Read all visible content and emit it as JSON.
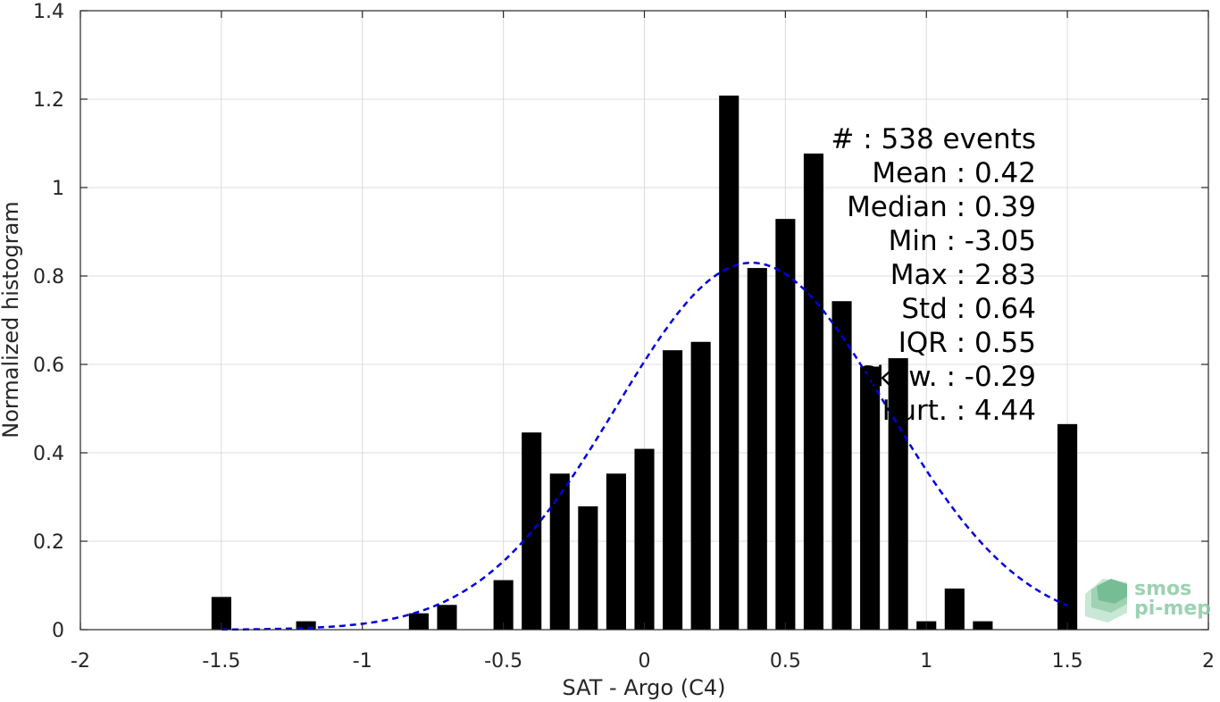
{
  "chart_data": {
    "type": "bar",
    "xlabel": "SAT - Argo (C4)",
    "ylabel": "Normalized histogram",
    "xlim": [
      -2,
      2
    ],
    "ylim": [
      0,
      1.4
    ],
    "grid": true,
    "xticks": [
      -2,
      -1.5,
      -1,
      -0.5,
      0,
      0.5,
      1,
      1.5,
      2
    ],
    "xtick_labels": [
      "-2",
      "-1.5",
      "-1",
      "-0.5",
      "0",
      "0.5",
      "1",
      "1.5",
      "2"
    ],
    "yticks": [
      0,
      0.2,
      0.4,
      0.6,
      0.8,
      1,
      1.2,
      1.4
    ],
    "ytick_labels": [
      "0",
      "0.2",
      "0.4",
      "0.6",
      "0.8",
      "1",
      "1.2",
      "1.4"
    ],
    "bar_width": 0.07,
    "bins": [
      {
        "x": -1.5,
        "y": 0.074
      },
      {
        "x": -1.2,
        "y": 0.019
      },
      {
        "x": -0.8,
        "y": 0.037
      },
      {
        "x": -0.7,
        "y": 0.056
      },
      {
        "x": -0.5,
        "y": 0.112
      },
      {
        "x": -0.4,
        "y": 0.446
      },
      {
        "x": -0.3,
        "y": 0.353
      },
      {
        "x": -0.2,
        "y": 0.279
      },
      {
        "x": -0.1,
        "y": 0.353
      },
      {
        "x": 0.0,
        "y": 0.409
      },
      {
        "x": 0.1,
        "y": 0.632
      },
      {
        "x": 0.2,
        "y": 0.651
      },
      {
        "x": 0.3,
        "y": 1.208
      },
      {
        "x": 0.4,
        "y": 0.818
      },
      {
        "x": 0.5,
        "y": 0.929
      },
      {
        "x": 0.6,
        "y": 1.077
      },
      {
        "x": 0.7,
        "y": 0.743
      },
      {
        "x": 0.8,
        "y": 0.595
      },
      {
        "x": 0.9,
        "y": 0.614
      },
      {
        "x": 1.0,
        "y": 0.019
      },
      {
        "x": 1.1,
        "y": 0.093
      },
      {
        "x": 1.2,
        "y": 0.019
      },
      {
        "x": 1.5,
        "y": 0.465
      }
    ],
    "fit_curve": {
      "type": "gaussian",
      "mean": 0.38,
      "peak": 0.83,
      "sigma": 0.48,
      "x_range": [
        -1.5,
        1.5
      ],
      "color": "#0000e0",
      "style": "dashed"
    },
    "bar_color": "#000000"
  },
  "stats": [
    "#  : 538 events",
    "Mean : 0.42",
    "Median : 0.39",
    "Min : -3.05",
    "Max : 2.83",
    "Std : 0.64",
    "IQR : 0.55",
    "Skew. : -0.29",
    "Kurt. : 4.44"
  ],
  "logo": {
    "line1": "smos",
    "line2": "pi-mep",
    "color": "#8cc9a5"
  }
}
